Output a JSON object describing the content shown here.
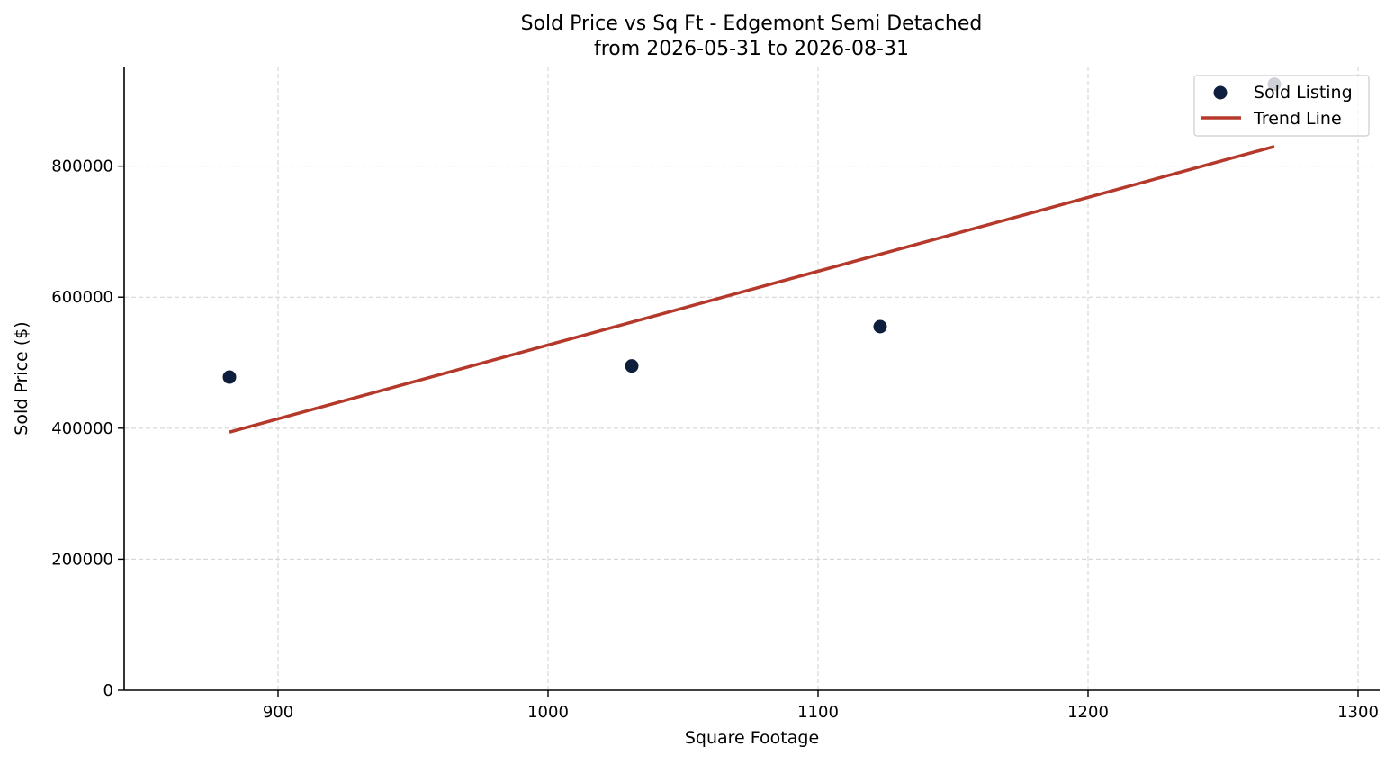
{
  "chart_data": {
    "type": "scatter",
    "title": "Sold Price vs Sq Ft - Edgemont Semi Detached",
    "subtitle": "from 2026-05-31 to 2026-08-31",
    "xlabel": "Square Footage",
    "ylabel": "Sold Price ($)",
    "xlim": [
      843,
      1308
    ],
    "ylim": [
      0,
      952000
    ],
    "x_ticks": [
      900,
      1000,
      1100,
      1200,
      1300
    ],
    "y_ticks": [
      0,
      200000,
      400000,
      600000,
      800000
    ],
    "grid": true,
    "legend_position": "top-right",
    "series": [
      {
        "name": "Sold Listing",
        "kind": "scatter",
        "color": "#0d1f3c",
        "points": [
          {
            "x": 882,
            "y": 478000
          },
          {
            "x": 1031,
            "y": 495000
          },
          {
            "x": 1123,
            "y": 555000
          },
          {
            "x": 1269,
            "y": 925000
          }
        ]
      },
      {
        "name": "Trend Line",
        "kind": "line",
        "color": "#b5392b",
        "points": [
          {
            "x": 882,
            "y": 394000
          },
          {
            "x": 1269,
            "y": 830000
          }
        ]
      }
    ]
  }
}
